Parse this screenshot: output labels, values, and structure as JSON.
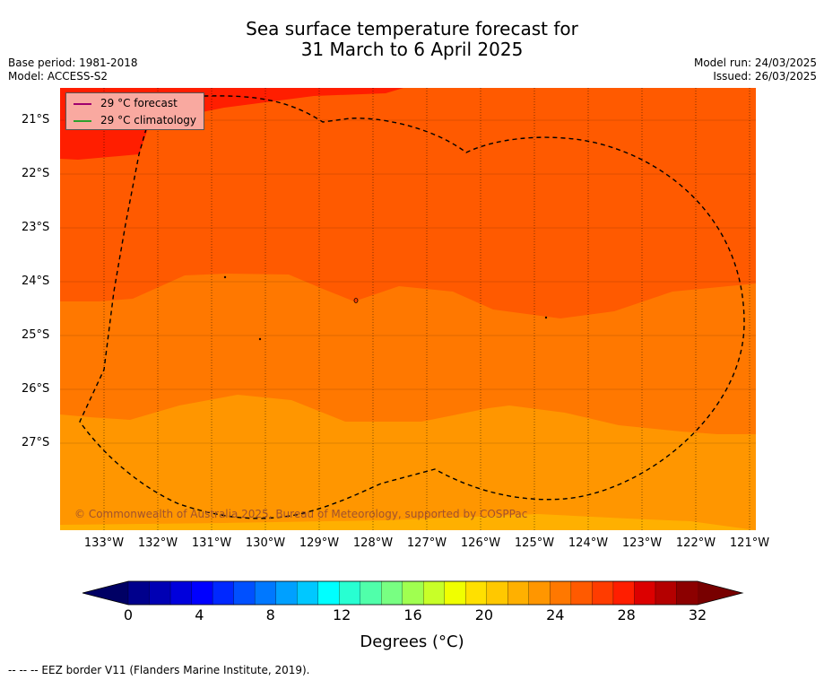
{
  "title": {
    "line1": "Sea surface temperature forecast for",
    "line2": "31 March to 6 April 2025"
  },
  "meta": {
    "base_period": "Base period: 1981-2018",
    "model": "Model: ACCESS-S2",
    "model_run": "Model run: 24/03/2025",
    "issued": "Issued: 26/03/2025"
  },
  "legend": {
    "forecast": "29 °C  forecast",
    "climatology": "29 °C  climatology",
    "forecast_color": "#a0006e",
    "climatology_color": "#2ca02c"
  },
  "credit": "© Commonwealth of Australia 2025, Bureau of Meteorology, supported by COSPPac",
  "axes": {
    "lat_labels": [
      "21°S",
      "22°S",
      "23°S",
      "24°S",
      "25°S",
      "26°S",
      "27°S"
    ],
    "lon_labels": [
      "133°W",
      "132°W",
      "131°W",
      "130°W",
      "129°W",
      "128°W",
      "127°W",
      "126°W",
      "125°W",
      "124°W",
      "123°W",
      "122°W",
      "121°W"
    ]
  },
  "colorbar": {
    "ticks": [
      "0",
      "4",
      "8",
      "12",
      "16",
      "20",
      "24",
      "28",
      "32"
    ],
    "label": "Degrees (°C)",
    "colors": [
      "#00008c",
      "#0000b4",
      "#0000dc",
      "#0000ff",
      "#0028ff",
      "#0050ff",
      "#0078ff",
      "#00a0ff",
      "#00c8ff",
      "#00ffff",
      "#28ffd2",
      "#50ffaa",
      "#78ff82",
      "#a0ff50",
      "#c8ff28",
      "#f0ff00",
      "#ffe000",
      "#ffc800",
      "#ffb000",
      "#ff9600",
      "#ff7800",
      "#ff5a00",
      "#ff3c00",
      "#ff1e00",
      "#dc0000",
      "#b40000",
      "#8c0000"
    ],
    "under_color": "#000064",
    "over_color": "#780000"
  },
  "footer": "--  --  -- EEZ border V11 (Flanders Marine Institute, 2019)."
}
